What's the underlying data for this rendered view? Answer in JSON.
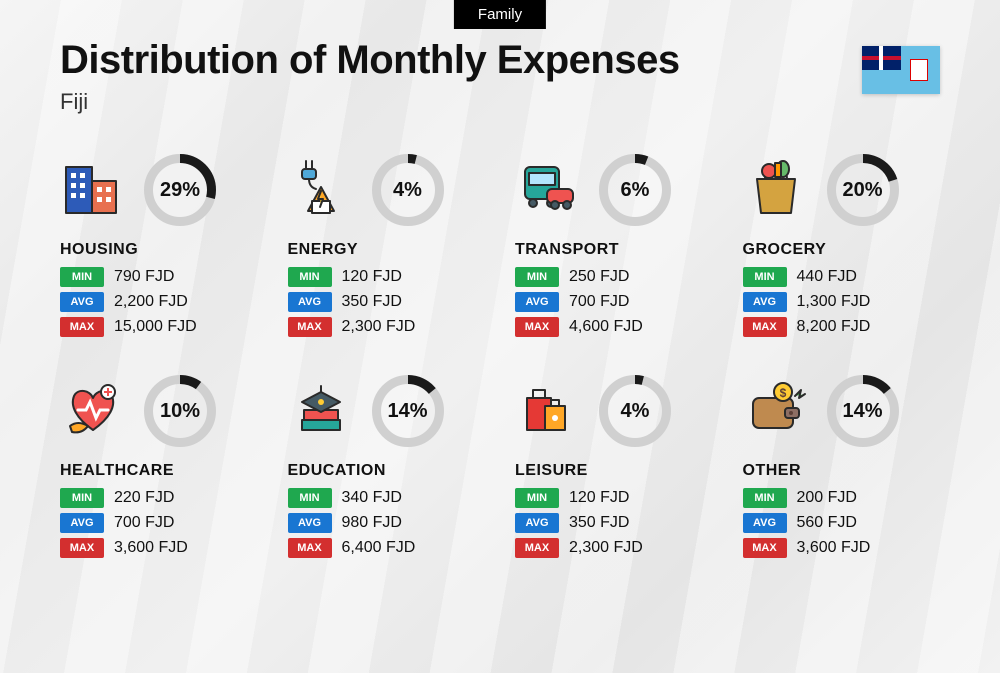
{
  "top_tag": "Family",
  "title": "Distribution of Monthly Expenses",
  "subtitle": "Fiji",
  "currency": "FJD",
  "labels": {
    "min": "MIN",
    "avg": "AVG",
    "max": "MAX"
  },
  "colors": {
    "min_badge": "#1fa84f",
    "avg_badge": "#1976d2",
    "max_badge": "#d32f2f",
    "donut_fill": "#1a1a1a",
    "donut_track": "#d0d0d0",
    "text": "#111111",
    "background_gradient": [
      "#f5f5f5",
      "#e8e8e8",
      "#f0f0f0"
    ]
  },
  "donut": {
    "size": 72,
    "stroke": 9
  },
  "flag": {
    "bg": "#68bfe5",
    "canton": "#012169"
  },
  "categories": [
    {
      "key": "housing",
      "name": "HOUSING",
      "percent": 29,
      "min": "790 FJD",
      "avg": "2,200 FJD",
      "max": "15,000 FJD",
      "icon_colors": {
        "a": "#2d5bb8",
        "b": "#e8704f",
        "c": "#4fa8d8"
      }
    },
    {
      "key": "energy",
      "name": "ENERGY",
      "percent": 4,
      "min": "120 FJD",
      "avg": "350 FJD",
      "max": "2,300 FJD",
      "icon_colors": {
        "a": "#ffa726",
        "b": "#4fa8d8",
        "c": "#ffcc33"
      }
    },
    {
      "key": "transport",
      "name": "TRANSPORT",
      "percent": 6,
      "min": "250 FJD",
      "avg": "700 FJD",
      "max": "4,600 FJD",
      "icon_colors": {
        "a": "#26a69a",
        "b": "#ef5350",
        "c": "#455a64"
      }
    },
    {
      "key": "grocery",
      "name": "GROCERY",
      "percent": 20,
      "min": "440 FJD",
      "avg": "1,300 FJD",
      "max": "8,200 FJD",
      "icon_colors": {
        "a": "#d4a340",
        "b": "#66bb6a",
        "c": "#ef5350",
        "d": "#ff9800"
      }
    },
    {
      "key": "healthcare",
      "name": "HEALTHCARE",
      "percent": 10,
      "min": "220 FJD",
      "avg": "700 FJD",
      "max": "3,600 FJD",
      "icon_colors": {
        "a": "#ef5350",
        "b": "#ffb3b3",
        "c": "#ffa726"
      }
    },
    {
      "key": "education",
      "name": "EDUCATION",
      "percent": 14,
      "min": "340 FJD",
      "avg": "980 FJD",
      "max": "6,400 FJD",
      "icon_colors": {
        "a": "#455a64",
        "b": "#ef5350",
        "c": "#26a69a",
        "d": "#ffcc33"
      }
    },
    {
      "key": "leisure",
      "name": "LEISURE",
      "percent": 4,
      "min": "120 FJD",
      "avg": "350 FJD",
      "max": "2,300 FJD",
      "icon_colors": {
        "a": "#e53935",
        "b": "#ffa726",
        "c": "#5d4037"
      }
    },
    {
      "key": "other",
      "name": "OTHER",
      "percent": 14,
      "min": "200 FJD",
      "avg": "560 FJD",
      "max": "3,600 FJD",
      "icon_colors": {
        "a": "#bf8a4f",
        "b": "#4caf50",
        "c": "#ffcc33"
      }
    }
  ]
}
